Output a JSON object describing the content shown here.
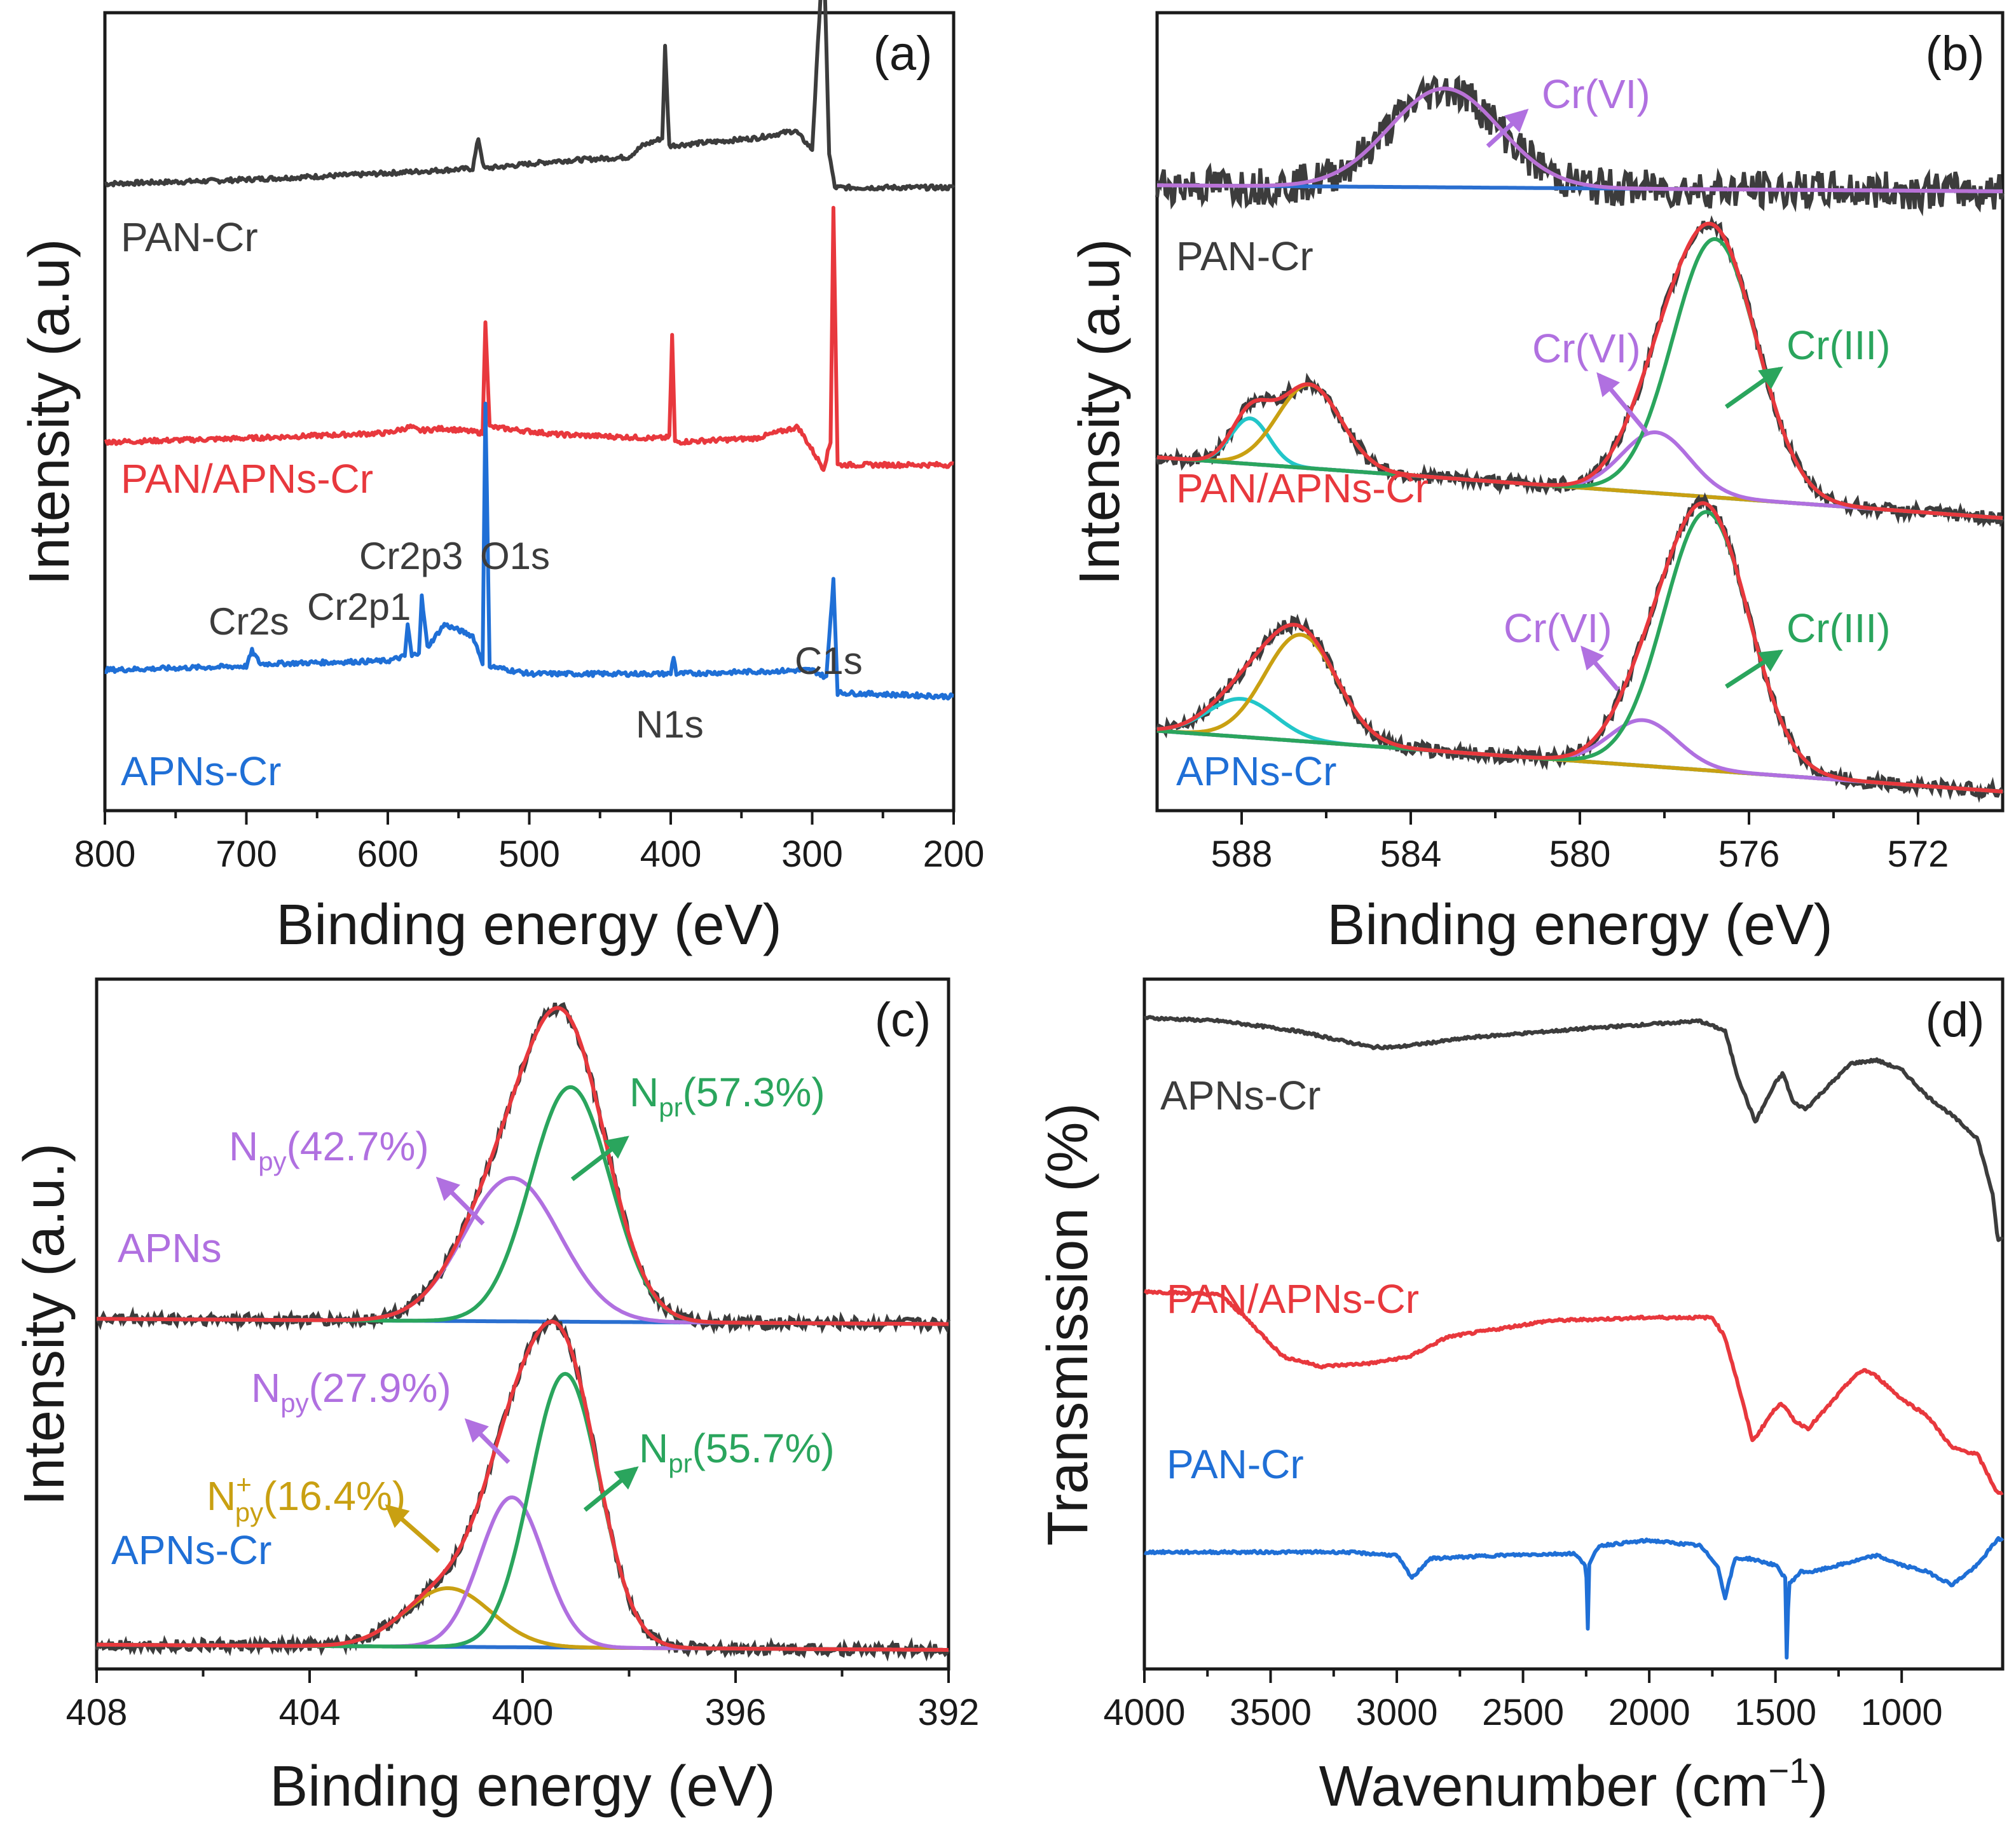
{
  "colors": {
    "black": "#3c3c3c",
    "red": "#e8383d",
    "blue": "#1f6fd6",
    "purple": "#b070e0",
    "green": "#2aa55d",
    "cyan": "#22c6c9",
    "olive": "#c9a012",
    "fitblue": "#2a6fd0",
    "fitpurple": "#b972d6"
  },
  "chart_data": [
    {
      "panel": "a",
      "type": "line",
      "panel_label": "(a)",
      "xlabel": "Binding energy (eV)",
      "ylabel": "Intensity (a.u)",
      "xlim": [
        800,
        200
      ],
      "xticks": [
        800,
        700,
        600,
        500,
        400,
        300,
        200
      ],
      "series": [
        {
          "name": "PAN-Cr",
          "color": "black",
          "offset": 0.8,
          "points": [
            [
              800,
              0.0
            ],
            [
              720,
              0.004
            ],
            [
              620,
              0.012
            ],
            [
              560,
              0.018
            ],
            [
              540,
              0.02
            ],
            [
              536,
              0.06
            ],
            [
              532,
              0.02
            ],
            [
              480,
              0.03
            ],
            [
              430,
              0.035
            ],
            [
              420,
              0.05
            ],
            [
              406,
              0.06
            ],
            [
              404,
              0.18
            ],
            [
              401,
              0.05
            ],
            [
              340,
              0.06
            ],
            [
              312,
              0.07
            ],
            [
              300,
              0.045
            ],
            [
              292,
              0.32
            ],
            [
              288,
              0.04
            ],
            [
              284,
              -0.005
            ],
            [
              200,
              -0.005
            ]
          ]
        },
        {
          "name": "PAN/APNs-Cr",
          "color": "red",
          "offset": 0.46,
          "points": [
            [
              800,
              0.0
            ],
            [
              700,
              0.005
            ],
            [
              600,
              0.012
            ],
            [
              584,
              0.02
            ],
            [
              578,
              0.015
            ],
            [
              560,
              0.018
            ],
            [
              533,
              0.012
            ],
            [
              531,
              0.16
            ],
            [
              528,
              0.02
            ],
            [
              480,
              0.01
            ],
            [
              410,
              0.005
            ],
            [
              401,
              0.006
            ],
            [
              399,
              0.14
            ],
            [
              397,
              0.0
            ],
            [
              340,
              0.005
            ],
            [
              310,
              0.02
            ],
            [
              292,
              -0.035
            ],
            [
              287,
              0.0
            ],
            [
              285,
              0.31
            ],
            [
              282,
              -0.03
            ],
            [
              200,
              -0.03
            ]
          ]
        },
        {
          "name": "APNs-Cr",
          "color": "blue",
          "offset": 0.16,
          "points": [
            [
              800,
              0.0
            ],
            [
              700,
              0.005
            ],
            [
              696,
              0.025
            ],
            [
              690,
              0.008
            ],
            [
              600,
              0.012
            ],
            [
              588,
              0.018
            ],
            [
              586,
              0.06
            ],
            [
              583,
              0.018
            ],
            [
              578,
              0.024
            ],
            [
              576,
              0.096
            ],
            [
              572,
              0.03
            ],
            [
              560,
              0.06
            ],
            [
              540,
              0.045
            ],
            [
              533,
              0.01
            ],
            [
              531,
              0.35
            ],
            [
              528,
              0.005
            ],
            [
              500,
              -0.005
            ],
            [
              400,
              -0.005
            ],
            [
              398,
              0.018
            ],
            [
              396,
              -0.005
            ],
            [
              300,
              0.0
            ],
            [
              290,
              -0.01
            ],
            [
              285,
              0.12
            ],
            [
              282,
              -0.03
            ],
            [
              200,
              -0.035
            ]
          ]
        }
      ],
      "annotations": [
        "Cr2s",
        "Cr2p1",
        "Cr2p3",
        "O1s",
        "N1s",
        "C1s"
      ]
    },
    {
      "panel": "b",
      "type": "line",
      "panel_label": "(b)",
      "xlabel": "Binding energy (eV)",
      "ylabel": "Intensity (a.u)",
      "xlim": [
        590,
        570
      ],
      "xticks": [
        588,
        584,
        580,
        576,
        572
      ],
      "groups": [
        {
          "name": "PAN-Cr",
          "offset": 0.79,
          "peaks": [
            {
              "label": "Cr(VI)",
              "center": 583.2,
              "height": 0.13,
              "width": 1.3
            }
          ]
        },
        {
          "name": "PAN/APNs-Cr",
          "offset": 0.36,
          "peaks": [
            {
              "label": "",
              "center": 587.8,
              "height": 0.06,
              "width": 0.45
            },
            {
              "label": "",
              "center": 586.4,
              "height": 0.11,
              "width": 0.75
            },
            {
              "label": "Cr(VI)",
              "center": 578.2,
              "height": 0.08,
              "width": 0.8
            },
            {
              "label": "Cr(III)",
              "center": 576.8,
              "height": 0.34,
              "width": 1.0
            }
          ]
        },
        {
          "name": "APNs-Cr",
          "offset": 0.0,
          "peaks": [
            {
              "label": "",
              "center": 588.0,
              "height": 0.05,
              "width": 0.8
            },
            {
              "label": "",
              "center": 586.6,
              "height": 0.14,
              "width": 0.85
            },
            {
              "label": "Cr(VI)",
              "center": 578.5,
              "height": 0.06,
              "width": 0.8
            },
            {
              "label": "Cr(III)",
              "center": 577.0,
              "height": 0.34,
              "width": 1.0
            }
          ]
        }
      ],
      "annotations": [
        "Cr(VI)",
        "Cr(VI)",
        "Cr(III)",
        "Cr(VI)",
        "Cr(III)"
      ]
    },
    {
      "panel": "c",
      "type": "line",
      "panel_label": "(c)",
      "xlabel": "Binding energy (eV)",
      "ylabel": "Intensity (a.u.)",
      "xlim": [
        408,
        392
      ],
      "xticks": [
        408,
        404,
        400,
        396,
        392
      ],
      "groups": [
        {
          "name": "APNs",
          "offset": 0.5,
          "peaks": [
            {
              "label": "Npy(42.7%)",
              "center": 400.2,
              "height": 0.22,
              "width": 0.9
            },
            {
              "label": "Npr(57.3%)",
              "center": 399.1,
              "height": 0.36,
              "width": 0.75
            }
          ]
        },
        {
          "name": "APNs-Cr",
          "offset": 0.0,
          "peaks": [
            {
              "label": "N+py(16.4%)",
              "center": 401.4,
              "height": 0.09,
              "width": 0.8
            },
            {
              "label": "Npy(27.9%)",
              "center": 400.2,
              "height": 0.23,
              "width": 0.6
            },
            {
              "label": "Npr(55.7%)",
              "center": 399.2,
              "height": 0.42,
              "width": 0.65
            }
          ]
        }
      ],
      "annotations": [
        "Npy(42.7%)",
        "Npr(57.3%)",
        "Npy(27.9%)",
        "Npr(55.7%)",
        "N+py(16.4%)"
      ]
    },
    {
      "panel": "d",
      "type": "line",
      "panel_label": "(d)",
      "xlabel": "Wavenumber (cm−1)",
      "ylabel": "Transmission (%)",
      "xlim": [
        4000,
        600
      ],
      "xticks": [
        4000,
        3500,
        3000,
        2500,
        2000,
        1500,
        1000
      ],
      "series": [
        {
          "name": "APNs-Cr",
          "color": "black",
          "offset": 0.7,
          "points": [
            [
              4000,
              0.27
            ],
            [
              3700,
              0.265
            ],
            [
              3400,
              0.25
            ],
            [
              3100,
              0.225
            ],
            [
              3000,
              0.225
            ],
            [
              2700,
              0.24
            ],
            [
              2200,
              0.255
            ],
            [
              1800,
              0.265
            ],
            [
              1700,
              0.25
            ],
            [
              1650,
              0.18
            ],
            [
              1580,
              0.11
            ],
            [
              1500,
              0.17
            ],
            [
              1470,
              0.185
            ],
            [
              1430,
              0.14
            ],
            [
              1380,
              0.13
            ],
            [
              1330,
              0.15
            ],
            [
              1200,
              0.2
            ],
            [
              1100,
              0.205
            ],
            [
              1000,
              0.19
            ],
            [
              900,
              0.15
            ],
            [
              800,
              0.12
            ],
            [
              700,
              0.085
            ],
            [
              640,
              0.0
            ],
            [
              620,
              -0.07
            ]
          ]
        },
        {
          "name": "PAN/APNs-Cr",
          "color": "red",
          "offset": 0.36,
          "points": [
            [
              4000,
              0.19
            ],
            [
              3700,
              0.185
            ],
            [
              3600,
              0.15
            ],
            [
              3450,
              0.09
            ],
            [
              3300,
              0.075
            ],
            [
              3100,
              0.08
            ],
            [
              2950,
              0.09
            ],
            [
              2800,
              0.12
            ],
            [
              2400,
              0.145
            ],
            [
              2000,
              0.15
            ],
            [
              1750,
              0.15
            ],
            [
              1700,
              0.12
            ],
            [
              1650,
              0.05
            ],
            [
              1590,
              -0.04
            ],
            [
              1520,
              0.0
            ],
            [
              1480,
              0.02
            ],
            [
              1420,
              -0.01
            ],
            [
              1370,
              -0.02
            ],
            [
              1300,
              0.01
            ],
            [
              1200,
              0.055
            ],
            [
              1150,
              0.07
            ],
            [
              1100,
              0.06
            ],
            [
              1000,
              0.025
            ],
            [
              900,
              0.0
            ],
            [
              800,
              -0.05
            ],
            [
              700,
              -0.06
            ],
            [
              620,
              -0.12
            ]
          ]
        },
        {
          "name": "PAN-Cr",
          "color": "blue",
          "offset": 0.0,
          "points": [
            [
              4000,
              0.15
            ],
            [
              3400,
              0.15
            ],
            [
              3200,
              0.15
            ],
            [
              3000,
              0.145
            ],
            [
              2940,
              0.11
            ],
            [
              2870,
              0.14
            ],
            [
              2600,
              0.145
            ],
            [
              2300,
              0.148
            ],
            [
              2250,
              0.13
            ],
            [
              2244,
              0.02
            ],
            [
              2238,
              0.13
            ],
            [
              2200,
              0.16
            ],
            [
              2000,
              0.168
            ],
            [
              1800,
              0.16
            ],
            [
              1730,
              0.13
            ],
            [
              1700,
              0.08
            ],
            [
              1660,
              0.14
            ],
            [
              1600,
              0.14
            ],
            [
              1500,
              0.13
            ],
            [
              1460,
              0.11
            ],
            [
              1455,
              -0.03
            ],
            [
              1448,
              0.1
            ],
            [
              1400,
              0.12
            ],
            [
              1350,
              0.12
            ],
            [
              1250,
              0.13
            ],
            [
              1100,
              0.145
            ],
            [
              1000,
              0.13
            ],
            [
              900,
              0.12
            ],
            [
              800,
              0.1
            ],
            [
              700,
              0.13
            ],
            [
              620,
              0.17
            ]
          ]
        }
      ],
      "annotations": []
    }
  ],
  "labels": {
    "a": {
      "title": "(a)",
      "xlabel": "Binding energy (eV)",
      "ylabel": "Intensity (a.u)",
      "pan_cr": "PAN-Cr",
      "pan_apns_cr": "PAN/APNs-Cr",
      "apns_cr": "APNs-Cr",
      "cr2s": "Cr2s",
      "cr2p1": "Cr2p1",
      "cr2p3": "Cr2p3",
      "o1s": "O1s",
      "n1s": "N1s",
      "c1s": "C1s"
    },
    "b": {
      "title": "(b)",
      "xlabel": "Binding energy (eV)",
      "ylabel": "Intensity (a.u)",
      "pan_cr": "PAN-Cr",
      "pan_apns_cr": "PAN/APNs-Cr",
      "apns_cr": "APNs-Cr",
      "crvi_1": "Cr(VI)",
      "crvi_2": "Cr(VI)",
      "criii_2": "Cr(III)",
      "crvi_3": "Cr(VI)",
      "criii_3": "Cr(III)"
    },
    "c": {
      "title": "(c)",
      "xlabel": "Binding energy (eV)",
      "ylabel": "Intensity (a.u.)",
      "apns": "APNs",
      "apns_cr": "APNs-Cr",
      "npy1_main": "N",
      "npy1_sub": "py",
      "npy1_val": "(42.7%)",
      "npr1_main": "N",
      "npr1_sub": "pr",
      "npr1_val": "(57.3%)",
      "npy2_main": "N",
      "npy2_sub": "py",
      "npy2_val": "(27.9%)",
      "npr2_main": "N",
      "npr2_sub": "pr",
      "npr2_val": "(55.7%)",
      "npp_main": "N",
      "npp_sup": "+",
      "npp_sub": "py",
      "npp_val": "(16.4%)"
    },
    "d": {
      "title": "(d)",
      "xlabel_main": "Wavenumber (cm",
      "xlabel_sup": "−1",
      "xlabel_end": ")",
      "ylabel": "Transmission (%)",
      "apns_cr": "APNs-Cr",
      "pan_apns_cr": "PAN/APNs-Cr",
      "pan_cr": "PAN-Cr"
    }
  }
}
